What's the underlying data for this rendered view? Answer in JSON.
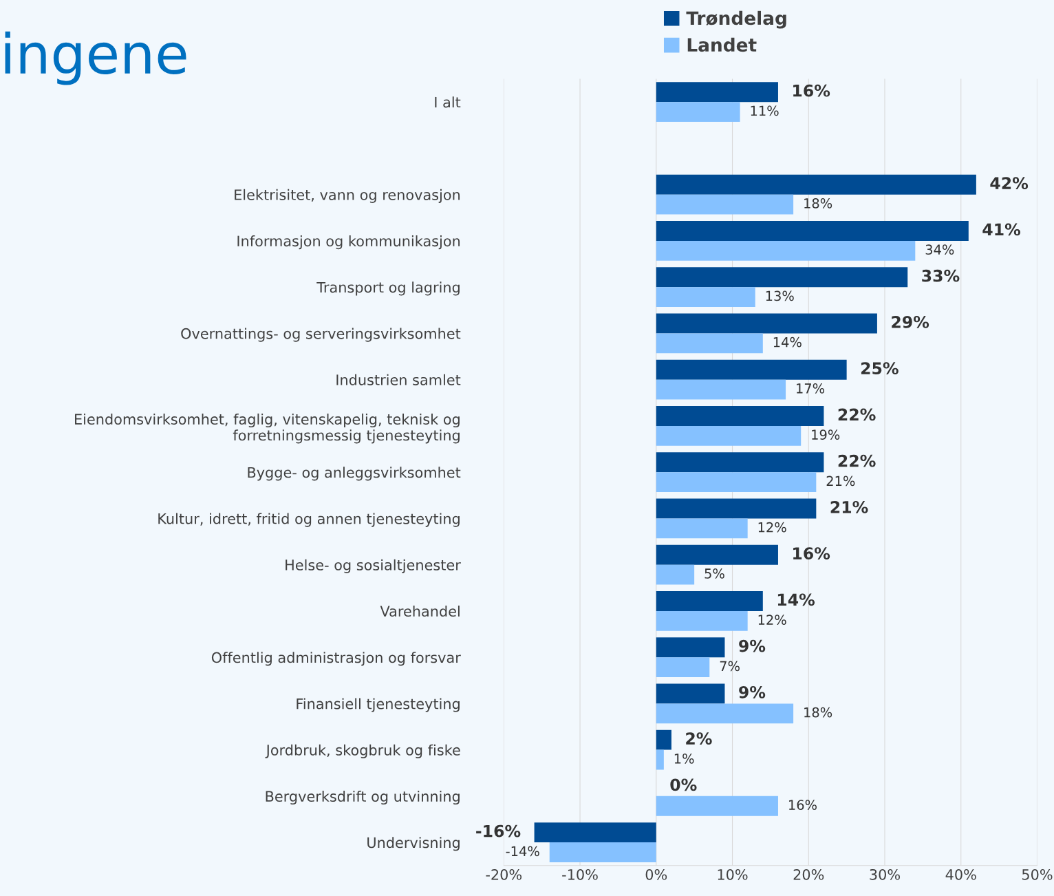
{
  "chart_data": {
    "type": "bar",
    "orientation": "horizontal",
    "title": "ingene",
    "categories": [
      "I alt",
      null,
      "Elektrisitet, vann og renovasjon",
      "Informasjon og kommunikasjon",
      "Transport og lagring",
      "Overnattings- og serveringsvirksomhet",
      "Industrien samlet",
      "Eiendomsvirksomhet, faglig, vitenskapelig, teknisk og forretningsmessig tjenesteyting",
      "Bygge- og anleggsvirksomhet",
      "Kultur, idrett, fritid og annen tjenesteyting",
      "Helse- og sosialtjenester",
      "Varehandel",
      "Offentlig administrasjon og forsvar",
      "Finansiell tjenesteyting",
      "Jordbruk, skogbruk og fiske",
      "Bergverksdrift og utvinning",
      "Undervisning"
    ],
    "series": [
      {
        "name": "Trøndelag",
        "color": "#004b93",
        "values": [
          16,
          null,
          42,
          41,
          33,
          29,
          25,
          22,
          22,
          21,
          16,
          14,
          9,
          9,
          2,
          0,
          -16
        ],
        "value_labels": [
          "16%",
          null,
          "42%",
          "41%",
          "33%",
          "29%",
          "25%",
          "22%",
          "22%",
          "21%",
          "16%",
          "14%",
          "9%",
          "9%",
          "2%",
          "0%",
          "-16%"
        ]
      },
      {
        "name": "Landet",
        "color": "#85c1ff",
        "values": [
          11,
          null,
          18,
          34,
          13,
          14,
          17,
          19,
          21,
          12,
          5,
          12,
          7,
          18,
          1,
          16,
          -14
        ],
        "value_labels": [
          "11%",
          null,
          "18%",
          "34%",
          "13%",
          "14%",
          "17%",
          "19%",
          "21%",
          "12%",
          "5%",
          "12%",
          "7%",
          "18%",
          "1%",
          "16%",
          "-14%"
        ]
      }
    ],
    "xlim": [
      -20,
      50
    ],
    "xticks": [
      {
        "value": -20,
        "label": "-20%"
      },
      {
        "value": -10,
        "label": "-10%"
      },
      {
        "value": 0,
        "label": "0%"
      },
      {
        "value": 10,
        "label": "10%"
      },
      {
        "value": 20,
        "label": "20%"
      },
      {
        "value": 30,
        "label": "30%"
      },
      {
        "value": 40,
        "label": "40%"
      },
      {
        "value": 50,
        "label": "50%"
      }
    ],
    "grid": "x",
    "legend": "top"
  }
}
